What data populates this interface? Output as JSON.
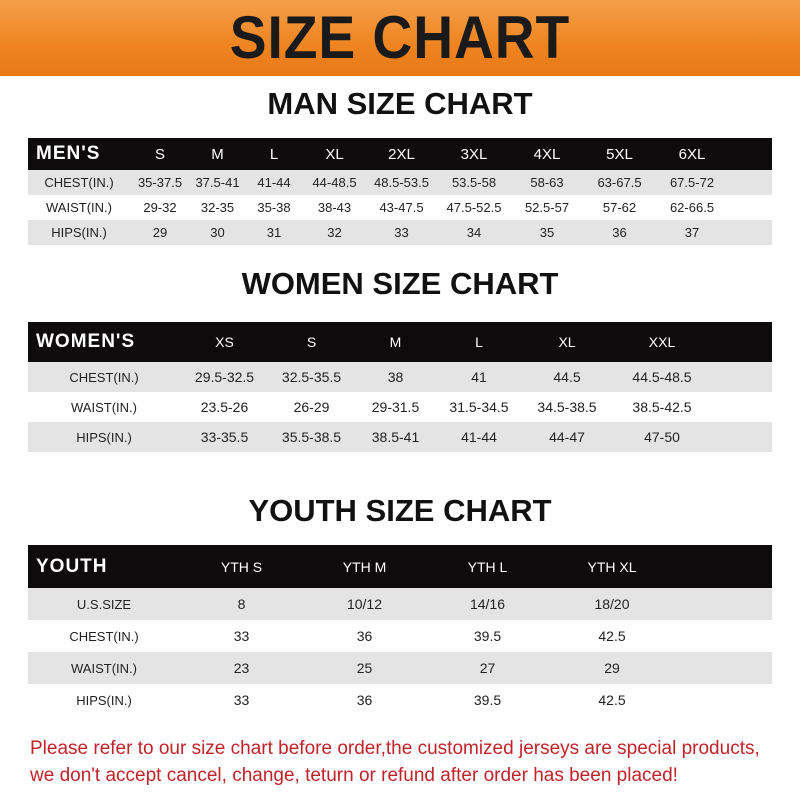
{
  "banner": {
    "title": "SIZE CHART",
    "color": "#ee8420"
  },
  "men": {
    "title": "MAN SIZE CHART",
    "header": [
      "MEN'S",
      "S",
      "M",
      "L",
      "XL",
      "2XL",
      "3XL",
      "4XL",
      "5XL",
      "6XL"
    ],
    "rows": [
      [
        "CHEST(IN.)",
        "35-37.5",
        "37.5-41",
        "41-44",
        "44-48.5",
        "48.5-53.5",
        "53.5-58",
        "58-63",
        "63-67.5",
        "67.5-72"
      ],
      [
        "WAIST(IN.)",
        "29-32",
        "32-35",
        "35-38",
        "38-43",
        "43-47.5",
        "47.5-52.5",
        "52.5-57",
        "57-62",
        "62-66.5"
      ],
      [
        "HIPS(IN.)",
        "29",
        "30",
        "31",
        "32",
        "33",
        "34",
        "35",
        "36",
        "37"
      ]
    ]
  },
  "women": {
    "title": "WOMEN SIZE CHART",
    "header": [
      "WOMEN'S",
      "XS",
      "S",
      "M",
      "L",
      "XL",
      "XXL"
    ],
    "rows": [
      [
        "CHEST(IN.)",
        "29.5-32.5",
        "32.5-35.5",
        "38",
        "41",
        "44.5",
        "44.5-48.5"
      ],
      [
        "WAIST(IN.)",
        "23.5-26",
        "26-29",
        "29-31.5",
        "31.5-34.5",
        "34.5-38.5",
        "38.5-42.5"
      ],
      [
        "HIPS(IN.)",
        "33-35.5",
        "35.5-38.5",
        "38.5-41",
        "41-44",
        "44-47",
        "47-50"
      ]
    ]
  },
  "youth": {
    "title": "YOUTH SIZE CHART",
    "header": [
      "YOUTH",
      "YTH S",
      "YTH M",
      "YTH L",
      "YTH XL"
    ],
    "rows": [
      [
        "U.S.SIZE",
        "8",
        "10/12",
        "14/16",
        "18/20"
      ],
      [
        "CHEST(IN.)",
        "33",
        "36",
        "39.5",
        "42.5"
      ],
      [
        "WAIST(IN.)",
        "23",
        "25",
        "27",
        "29"
      ],
      [
        "HIPS(IN.)",
        "33",
        "36",
        "39.5",
        "42.5"
      ]
    ]
  },
  "footer": {
    "line1": "Please refer to our size chart before order,the customized jerseys are special products,",
    "line2": "we don't accept cancel, change, teturn or refund after order has been placed!",
    "color": "#c0232a"
  }
}
